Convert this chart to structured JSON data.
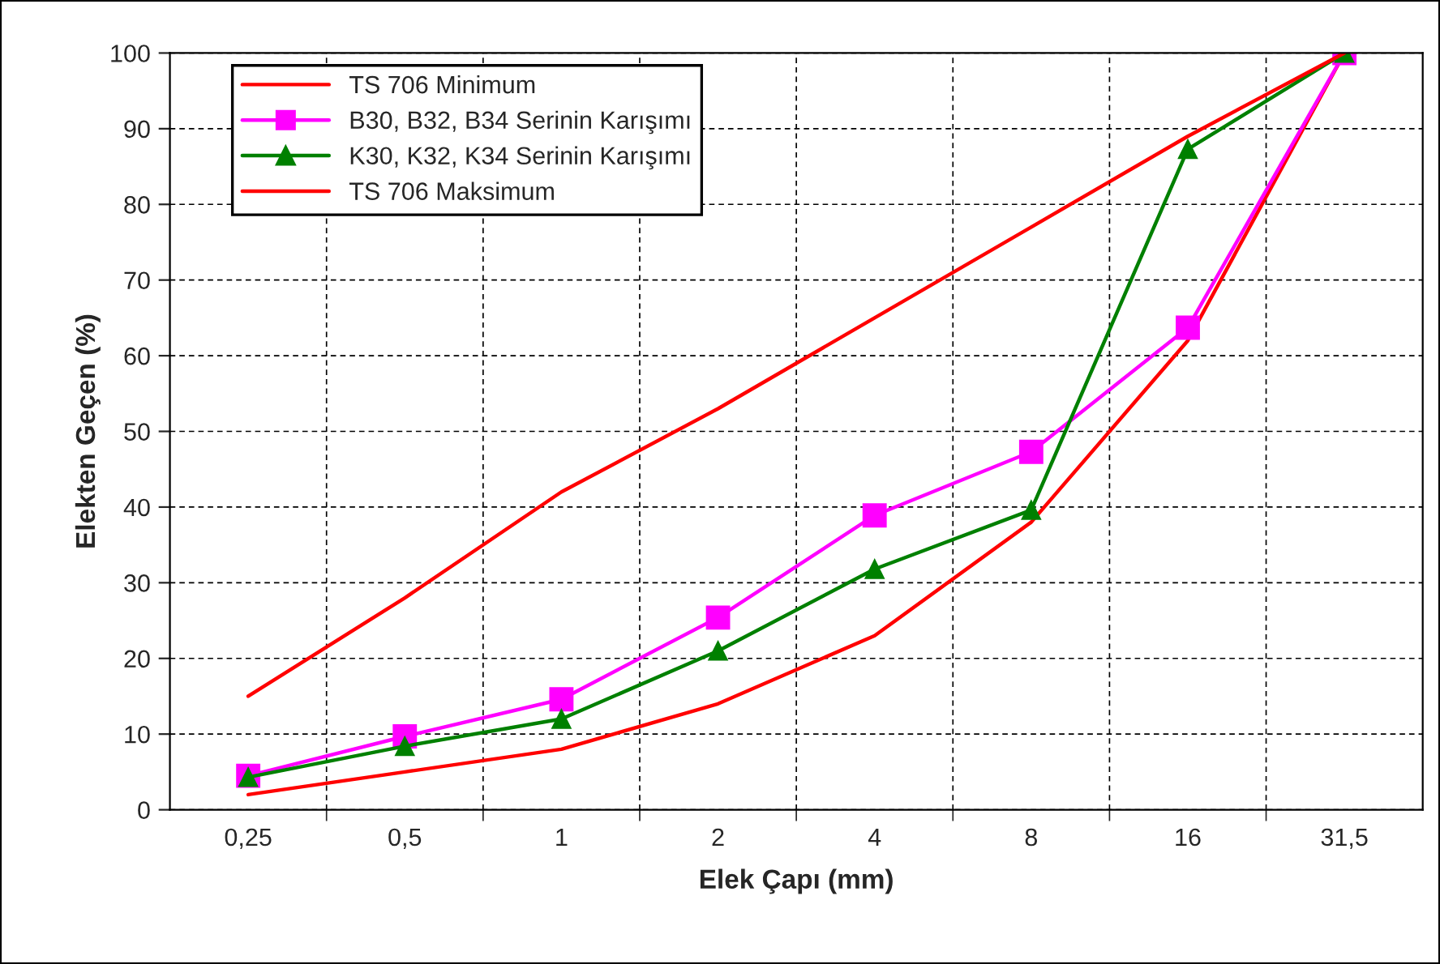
{
  "chart_data": {
    "type": "line",
    "xlabel": "Elek Çapı (mm)",
    "ylabel": "Elekten Geçen (%)",
    "categories": [
      "0,25",
      "0,5",
      "1",
      "2",
      "4",
      "8",
      "16",
      "31,5"
    ],
    "series": [
      {
        "name": "TS 706 Minimum",
        "color": "#ff0000",
        "marker": "none",
        "values": [
          2,
          5,
          8,
          14,
          23,
          38,
          62,
          100
        ]
      },
      {
        "name": "B30, B32, B34 Serinin Karışımı",
        "color": "#ff00ff",
        "marker": "square",
        "values": [
          4.5,
          9.7,
          14.6,
          25.4,
          38.9,
          47.3,
          63.7,
          100
        ]
      },
      {
        "name": "K30, K32, K34 Serinin Karışımı",
        "color": "#008000",
        "marker": "triangle",
        "values": [
          4.3,
          8.4,
          12,
          21,
          31.8,
          39.6,
          87.3,
          100
        ]
      },
      {
        "name": "TS 706 Maksimum",
        "color": "#ff0000",
        "marker": "none",
        "values": [
          15,
          28,
          42,
          53,
          65,
          77,
          89,
          100
        ]
      }
    ],
    "ylim": [
      0,
      100
    ],
    "yticks": [
      0,
      10,
      20,
      30,
      40,
      50,
      60,
      70,
      80,
      90,
      100
    ],
    "grid": true,
    "legend": "top left",
    "line_style": "solid"
  }
}
